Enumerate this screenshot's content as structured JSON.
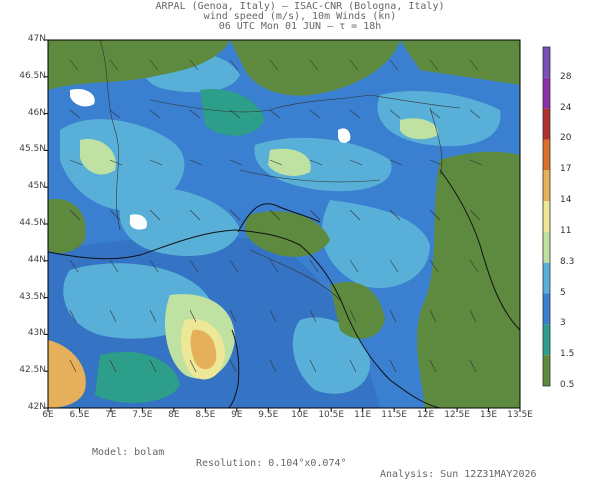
{
  "header": {
    "line1": "ARPAL (Genoa, Italy)  –  ISAC-CNR (Bologna, Italy)",
    "line2": "wind speed (m/s), 10m Winds (kn)",
    "line3": "06 UTC Mon 01 JUN  –  τ = 18h"
  },
  "map": {
    "lat_labels": [
      "47N",
      "46.5N",
      "46N",
      "45.5N",
      "45N",
      "44.5N",
      "44N",
      "43.5N",
      "43N",
      "42.5N",
      "42N"
    ],
    "lon_labels": [
      "6E",
      "6.5E",
      "7E",
      "7.5E",
      "8E",
      "8.5E",
      "9E",
      "9.5E",
      "10E",
      "10.5E",
      "11E",
      "11.5E",
      "12E",
      "12.5E",
      "13E",
      "13.5E"
    ],
    "field": "wind speed (m/s)"
  },
  "colorbar": {
    "labels": [
      "28",
      "24",
      "20",
      "17",
      "14",
      "11",
      "8.3",
      "5",
      "3",
      "1.5",
      "0.5"
    ],
    "colors": [
      "#7b4fb8",
      "#8d2fa8",
      "#b03030",
      "#d9702a",
      "#e6b05a",
      "#ece898",
      "#bfe2a2",
      "#58b0d8",
      "#3a7fd0",
      "#2d9e8a",
      "#5d8a3e"
    ]
  },
  "footer": {
    "model": "Model: bolam",
    "resolution": "Resolution: 0.104°x0.074°",
    "analysis": "Analysis: Sun 12Z31MAY2026"
  }
}
